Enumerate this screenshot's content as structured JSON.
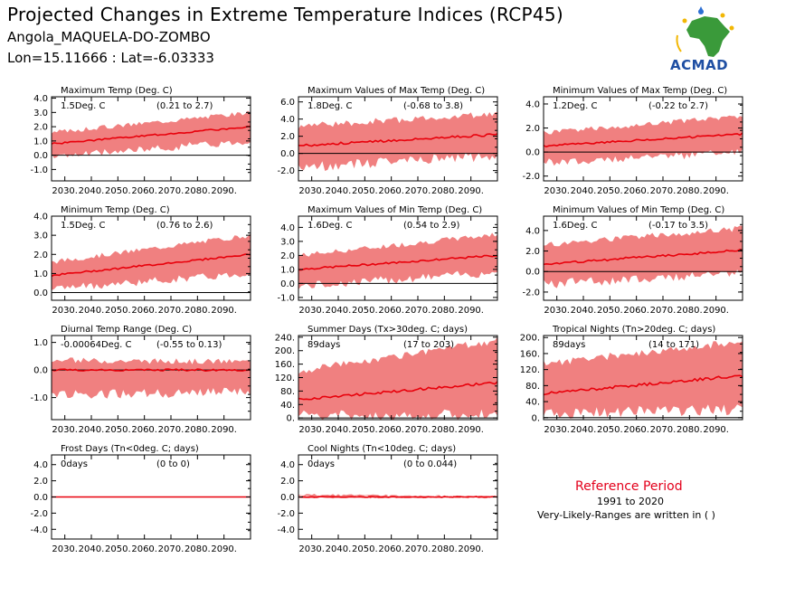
{
  "header": {
    "title": "Projected Changes in Extreme Temperature Indices (RCP45)",
    "location": "Angola_MAQUELA-DO-ZOMBO",
    "coordinates": "Lon=15.11666 : Lat=-6.03333"
  },
  "logo": {
    "text": "ACMAD"
  },
  "reference": {
    "title": "Reference Period",
    "years": "1991 to 2020",
    "note": "Very-Likely-Ranges are written in ( )"
  },
  "colors": {
    "band": "#f08080",
    "line": "#e8000b",
    "zero_line": "#000000"
  },
  "chart_data": [
    {
      "type": "area",
      "title": "Maximum Temp (Deg. C)",
      "summary": "1.5Deg. C",
      "range": "(0.21 to 2.7)",
      "x_range": [
        2025,
        2100
      ],
      "ylim": [
        -1.8,
        4.1
      ],
      "yticks": [
        "4.0",
        "3.0",
        "2.0",
        "1.0",
        "0.0",
        "-1.0"
      ],
      "xticks": [
        "2030.",
        "2040.",
        "2050.",
        "2060.",
        "2070.",
        "2080.",
        "2090."
      ],
      "series": [
        {
          "mean_start": 0.8,
          "mean_end": 2.0,
          "low_start": -0.1,
          "low_end": 1.0,
          "high_start": 1.6,
          "high_end": 3.0
        }
      ]
    },
    {
      "type": "area",
      "title": "Maximum Values of Max Temp (Deg. C)",
      "summary": "1.8Deg. C",
      "range": "(-0.68 to 3.8)",
      "x_range": [
        2025,
        2100
      ],
      "ylim": [
        -3.2,
        6.6
      ],
      "yticks": [
        "6.0",
        "4.0",
        "2.0",
        "0.0",
        "-2.0"
      ],
      "xticks": [
        "2030.",
        "2040.",
        "2050.",
        "2060.",
        "2070.",
        "2080.",
        "2090."
      ],
      "series": [
        {
          "mean_start": 0.9,
          "mean_end": 2.2,
          "low_start": -1.6,
          "low_end": -0.3,
          "high_start": 3.2,
          "high_end": 4.6
        }
      ]
    },
    {
      "type": "area",
      "title": "Minimum Values of Max Temp (Deg. C)",
      "summary": "1.2Deg. C",
      "range": "(-0.22 to 2.7)",
      "x_range": [
        2025,
        2100
      ],
      "ylim": [
        -2.4,
        4.6
      ],
      "yticks": [
        "4.0",
        "2.0",
        "0.0",
        "-2.0"
      ],
      "xticks": [
        "2030.",
        "2040.",
        "2050.",
        "2060.",
        "2070.",
        "2080.",
        "2090."
      ],
      "series": [
        {
          "mean_start": 0.5,
          "mean_end": 1.5,
          "low_start": -0.9,
          "low_end": 0.0,
          "high_start": 1.6,
          "high_end": 3.0
        }
      ]
    },
    {
      "type": "area",
      "title": "Minimum Temp (Deg. C)",
      "summary": "1.5Deg. C",
      "range": "(0.76 to 2.6)",
      "x_range": [
        2025,
        2100
      ],
      "ylim": [
        -0.4,
        4.0
      ],
      "yticks": [
        "4.0",
        "3.0",
        "2.0",
        "1.0",
        "0.0"
      ],
      "xticks": [
        "2030.",
        "2040.",
        "2050.",
        "2060.",
        "2070.",
        "2080.",
        "2090."
      ],
      "series": [
        {
          "mean_start": 0.9,
          "mean_end": 2.0,
          "low_start": 0.2,
          "low_end": 1.0,
          "high_start": 1.6,
          "high_end": 3.0
        }
      ]
    },
    {
      "type": "area",
      "title": "Maximum Values of Min Temp (Deg. C)",
      "summary": "1.6Deg. C",
      "range": "(0.54 to 2.9)",
      "x_range": [
        2025,
        2100
      ],
      "ylim": [
        -1.2,
        4.8
      ],
      "yticks": [
        "4.0",
        "3.0",
        "2.0",
        "1.0",
        "0.0",
        "-1.0"
      ],
      "xticks": [
        "2030.",
        "2040.",
        "2050.",
        "2060.",
        "2070.",
        "2080.",
        "2090."
      ],
      "series": [
        {
          "mean_start": 1.0,
          "mean_end": 2.0,
          "low_start": -0.2,
          "low_end": 0.8,
          "high_start": 2.0,
          "high_end": 3.5
        }
      ]
    },
    {
      "type": "area",
      "title": "Minimum Values of Min Temp (Deg. C)",
      "summary": "1.6Deg. C",
      "range": "(-0.17 to 3.5)",
      "x_range": [
        2025,
        2100
      ],
      "ylim": [
        -2.8,
        5.4
      ],
      "yticks": [
        "4.0",
        "2.0",
        "0.0",
        "-2.0"
      ],
      "xticks": [
        "2030.",
        "2040.",
        "2050.",
        "2060.",
        "2070.",
        "2080.",
        "2090."
      ],
      "series": [
        {
          "mean_start": 0.7,
          "mean_end": 2.1,
          "low_start": -1.2,
          "low_end": -0.2,
          "high_start": 2.6,
          "high_end": 4.2
        }
      ]
    },
    {
      "type": "area",
      "title": "Diurnal Temp Range (Deg. C)",
      "summary": "-0.00064Deg. C",
      "range": "(-0.55 to 0.13)",
      "x_range": [
        2025,
        2100
      ],
      "ylim": [
        -1.8,
        1.25
      ],
      "yticks": [
        "1.0",
        "0.0",
        "-1.0"
      ],
      "xticks": [
        "2030.",
        "2040.",
        "2050.",
        "2060.",
        "2070.",
        "2080.",
        "2090."
      ],
      "series": [
        {
          "mean_start": 0.0,
          "mean_end": 0.0,
          "low_start": -0.9,
          "low_end": -0.8,
          "high_start": 0.35,
          "high_end": 0.3
        }
      ]
    },
    {
      "type": "area",
      "title": "Summer Days (Tx>30deg. C; days)",
      "summary": "89days",
      "range": "(17 to 203)",
      "x_range": [
        2025,
        2100
      ],
      "ylim": [
        -5,
        245
      ],
      "yticks": [
        "240.",
        "200.",
        "160.",
        "120.",
        "80.",
        "40.",
        "0."
      ],
      "xticks": [
        "2030.",
        "2040.",
        "2050.",
        "2060.",
        "2070.",
        "2080.",
        "2090."
      ],
      "series": [
        {
          "mean_start": 55,
          "mean_end": 105,
          "low_start": 5,
          "low_end": 10,
          "high_start": 140,
          "high_end": 230
        }
      ]
    },
    {
      "type": "area",
      "title": "Tropical Nights (Tn>20deg. C; days)",
      "summary": "89days",
      "range": "(14 to 171)",
      "x_range": [
        2025,
        2100
      ],
      "ylim": [
        -5,
        205
      ],
      "yticks": [
        "200.",
        "160.",
        "120.",
        "80.",
        "40.",
        "0."
      ],
      "xticks": [
        "2030.",
        "2040.",
        "2050.",
        "2060.",
        "2070.",
        "2080.",
        "2090."
      ],
      "series": [
        {
          "mean_start": 60,
          "mean_end": 105,
          "low_start": 10,
          "low_end": 20,
          "high_start": 135,
          "high_end": 190
        }
      ]
    },
    {
      "type": "area",
      "title": "Frost Days (Tn<0deg. C; days)",
      "summary": "0days",
      "range": "(0 to 0)",
      "x_range": [
        2025,
        2100
      ],
      "ylim": [
        -5.2,
        5.2
      ],
      "yticks": [
        "4.0",
        "2.0",
        "0.0",
        "-2.0",
        "-4.0"
      ],
      "xticks": [
        "2030.",
        "2040.",
        "2050.",
        "2060.",
        "2070.",
        "2080.",
        "2090."
      ],
      "series": [
        {
          "mean_start": 0,
          "mean_end": 0,
          "low_start": 0,
          "low_end": 0,
          "high_start": 0,
          "high_end": 0
        }
      ]
    },
    {
      "type": "area",
      "title": "Cool Nights (Tn<10deg. C; days)",
      "summary": "0days",
      "range": "(0 to 0.044)",
      "x_range": [
        2025,
        2100
      ],
      "ylim": [
        -5.2,
        5.2
      ],
      "yticks": [
        "4.0",
        "2.0",
        "0.0",
        "-2.0",
        "-4.0"
      ],
      "xticks": [
        "2030.",
        "2040.",
        "2050.",
        "2060.",
        "2070.",
        "2080.",
        "2090."
      ],
      "series": [
        {
          "mean_start": 0,
          "mean_end": 0,
          "low_start": 0,
          "low_end": 0,
          "high_start": 0.3,
          "high_end": 0.05
        }
      ]
    }
  ]
}
